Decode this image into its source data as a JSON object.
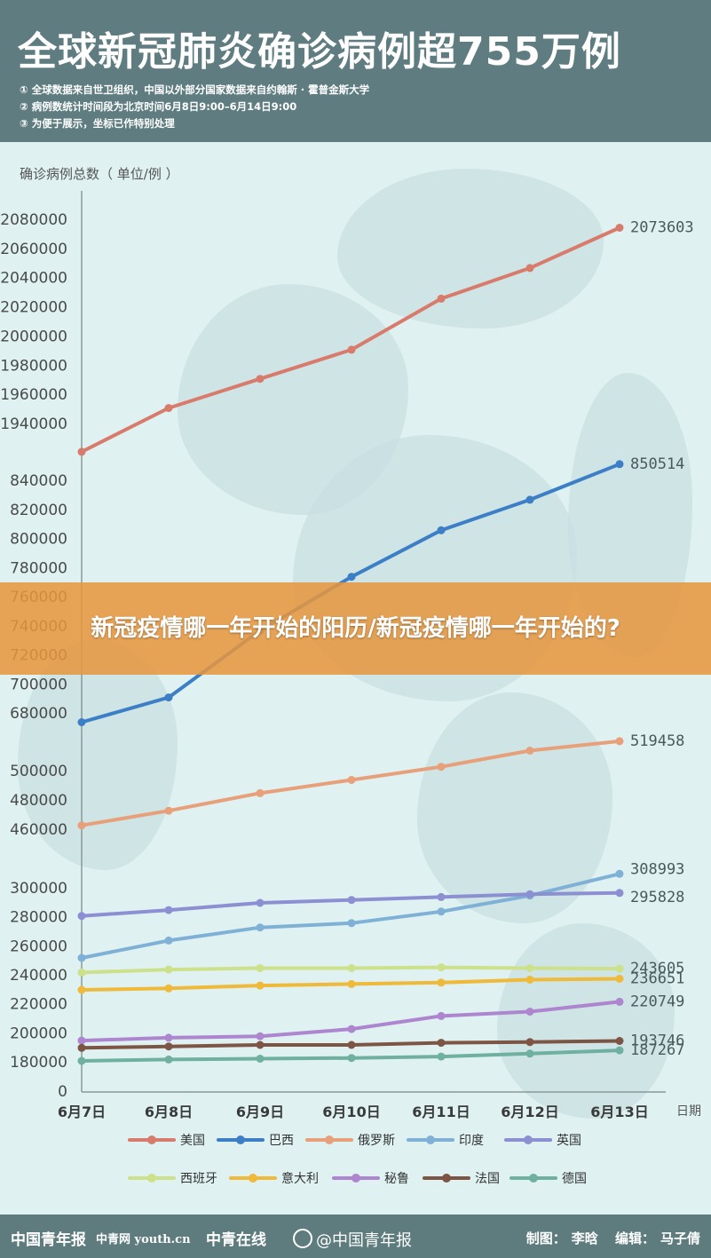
{
  "header": {
    "title": "全球新冠肺炎确诊病例超755万例",
    "notes": [
      "① 全球数据来自世卫组织，中国以外部分国家数据来自约翰斯 · 霍普金斯大学",
      "② 病例数统计时间段为北京时间6月8日9:00–6月14日9:00",
      "③ 为便于展示，坐标已作特别处理"
    ]
  },
  "banner": {
    "text": "新冠疫情哪一年开始的阳历/新冠疫情哪一年开始的?"
  },
  "footer": {
    "logo1": "中国青年报",
    "logo2": "中青网 youth.cn",
    "logo3": "中青在线",
    "weibo": "@中国青年报",
    "credit_maker_label": "制图：",
    "credit_maker": "李晗",
    "credit_editor_label": "编辑：",
    "credit_editor": "马子倩"
  },
  "colors": {
    "header_bg": "#5f7d80",
    "usa": "#d97b6c",
    "brazil": "#3d7fc7",
    "russia": "#e8a07a",
    "india": "#7fb1d6",
    "uk": "#8c8fd1",
    "spain": "#cde08a",
    "italy": "#efb93a",
    "peru": "#ad86cf",
    "france": "#7d5545",
    "germany": "#6fb0a0",
    "banner": "#e6963c"
  },
  "chart_data": {
    "type": "line",
    "ylabel": "确诊病例总数（ 单位/例 ）",
    "xlabel": "日期",
    "categories": [
      "6月7日",
      "6月8日",
      "6月9日",
      "6月10日",
      "6月11日",
      "6月12日",
      "6月13日"
    ],
    "y_ticks": [
      "2080000",
      "2060000",
      "2040000",
      "2020000",
      "2000000",
      "1980000",
      "1960000",
      "1940000",
      "840000",
      "820000",
      "800000",
      "780000",
      "760000",
      "740000",
      "720000",
      "700000",
      "680000",
      "500000",
      "480000",
      "460000",
      "300000",
      "280000",
      "260000",
      "240000",
      "220000",
      "200000",
      "180000",
      "0"
    ],
    "broken_axis": true,
    "legend_position": "bottom",
    "series": [
      {
        "name": "美国",
        "color": "#d97b6c",
        "values": [
          1920000,
          1950000,
          1970000,
          1990000,
          2025000,
          2046000,
          2073603
        ],
        "end_label": "2073603"
      },
      {
        "name": "巴西",
        "color": "#3d7fc7",
        "values": [
          673000,
          690000,
          736000,
          773000,
          805000,
          826000,
          850514
        ],
        "end_label": "850514"
      },
      {
        "name": "俄罗斯",
        "color": "#e8a07a",
        "values": [
          462000,
          472000,
          484000,
          493000,
          502000,
          513000,
          519458
        ],
        "end_label": "519458"
      },
      {
        "name": "印度",
        "color": "#7fb1d6",
        "values": [
          251000,
          263000,
          272000,
          275000,
          283000,
          294000,
          308993
        ],
        "end_label": "308993"
      },
      {
        "name": "英国",
        "legend_label": "英国",
        "color": "#8c8fd1",
        "values": [
          280000,
          284000,
          289000,
          291000,
          293000,
          295000,
          295828
        ],
        "end_label": "295828"
      },
      {
        "name": "西班牙",
        "color": "#cde08a",
        "values": [
          241000,
          243000,
          244000,
          244000,
          244500,
          244000,
          243605
        ],
        "end_label": "243605"
      },
      {
        "name": "意大利",
        "color": "#efb93a",
        "values": [
          229000,
          230000,
          232000,
          233000,
          234000,
          236000,
          236651
        ],
        "end_label": "236651"
      },
      {
        "name": "秘鲁",
        "color": "#ad86cf",
        "values": [
          194000,
          196000,
          197000,
          202000,
          211000,
          214000,
          220749
        ],
        "end_label": "220749"
      },
      {
        "name": "法国",
        "color": "#7d5545",
        "values": [
          189000,
          190000,
          191000,
          191000,
          192500,
          193000,
          193746
        ],
        "end_label": "193746"
      },
      {
        "name": "德国",
        "color": "#6fb0a0",
        "values": [
          180000,
          181000,
          181500,
          182000,
          183000,
          185000,
          187267
        ],
        "end_label": "187267"
      }
    ],
    "legend_labels": [
      "美国",
      "巴西",
      "俄罗斯",
      "印度",
      "英国",
      "西班牙",
      "意大利",
      "秘鲁",
      "法国",
      "德国"
    ]
  }
}
